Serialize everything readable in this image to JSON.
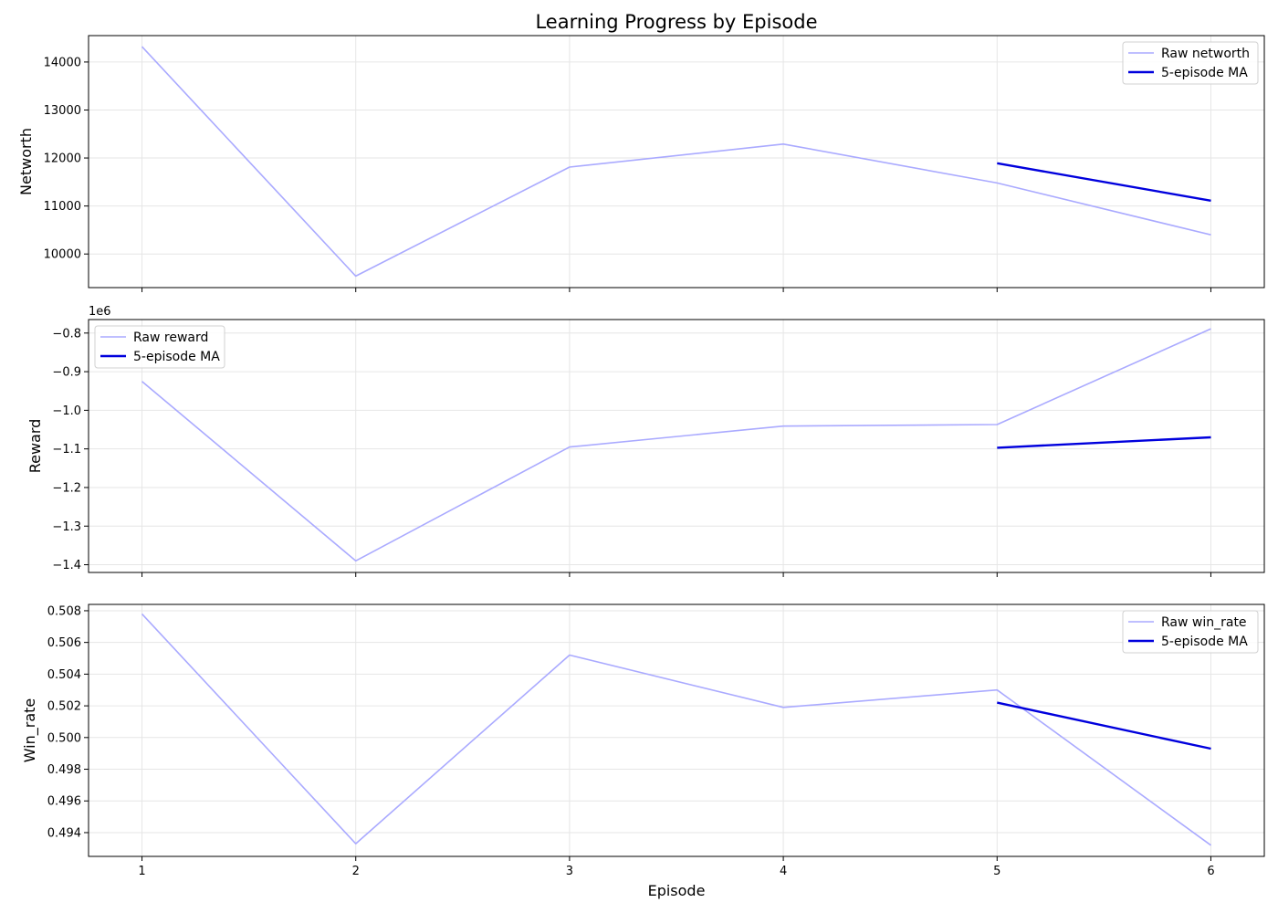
{
  "chart_data": {
    "type": "line",
    "title": "Learning Progress by Episode",
    "xlabel": "Episode",
    "x": [
      1,
      2,
      3,
      4,
      5,
      6
    ],
    "xticks": [
      "1",
      "2",
      "3",
      "4",
      "5",
      "6"
    ],
    "xlim": [
      0.75,
      6.25
    ],
    "grid": true,
    "colors": {
      "raw": "#aaaaff",
      "ma": "#0000dd"
    },
    "panels": [
      {
        "id": "networth",
        "ylabel": "Networth",
        "ylim": [
          9300,
          14550
        ],
        "yticks": [
          10000,
          11000,
          12000,
          13000,
          14000
        ],
        "ytick_labels": [
          "10000",
          "11000",
          "12000",
          "13000",
          "14000"
        ],
        "offset_label": "",
        "legend_position": "top-right",
        "series": [
          {
            "name": "Raw networth",
            "kind": "raw",
            "x": [
              1,
              2,
              3,
              4,
              5,
              6
            ],
            "values": [
              14320,
              9540,
              11810,
              12290,
              11480,
              10400
            ]
          },
          {
            "name": "5-episode MA",
            "kind": "ma",
            "x": [
              5,
              6
            ],
            "values": [
              11890,
              11110
            ]
          }
        ]
      },
      {
        "id": "reward",
        "ylabel": "Reward",
        "ylim": [
          -1.42,
          -0.765
        ],
        "yticks": [
          -1.4,
          -1.3,
          -1.2,
          -1.1,
          -1.0,
          -0.9,
          -0.8
        ],
        "ytick_labels": [
          "−1.4",
          "−1.3",
          "−1.2",
          "−1.1",
          "−1.0",
          "−0.9",
          "−0.8"
        ],
        "offset_label": "1e6",
        "legend_position": "top-left",
        "series": [
          {
            "name": "Raw reward",
            "kind": "raw",
            "x": [
              1,
              2,
              3,
              4,
              5,
              6
            ],
            "values": [
              -0.925,
              -1.39,
              -1.095,
              -1.041,
              -1.037,
              -0.789
            ]
          },
          {
            "name": "5-episode MA",
            "kind": "ma",
            "x": [
              5,
              6
            ],
            "values": [
              -1.097,
              -1.07
            ]
          }
        ]
      },
      {
        "id": "win_rate",
        "ylabel": "Win_rate",
        "ylim": [
          0.4925,
          0.5084
        ],
        "yticks": [
          0.494,
          0.496,
          0.498,
          0.5,
          0.502,
          0.504,
          0.506,
          0.508
        ],
        "ytick_labels": [
          "0.494",
          "0.496",
          "0.498",
          "0.500",
          "0.502",
          "0.504",
          "0.506",
          "0.508"
        ],
        "offset_label": "",
        "legend_position": "top-right",
        "series": [
          {
            "name": "Raw win_rate",
            "kind": "raw",
            "x": [
              1,
              2,
              3,
              4,
              5,
              6
            ],
            "values": [
              0.5078,
              0.4933,
              0.5052,
              0.5019,
              0.503,
              0.4932
            ]
          },
          {
            "name": "5-episode MA",
            "kind": "ma",
            "x": [
              5,
              6
            ],
            "values": [
              0.5022,
              0.4993
            ]
          }
        ]
      }
    ]
  }
}
